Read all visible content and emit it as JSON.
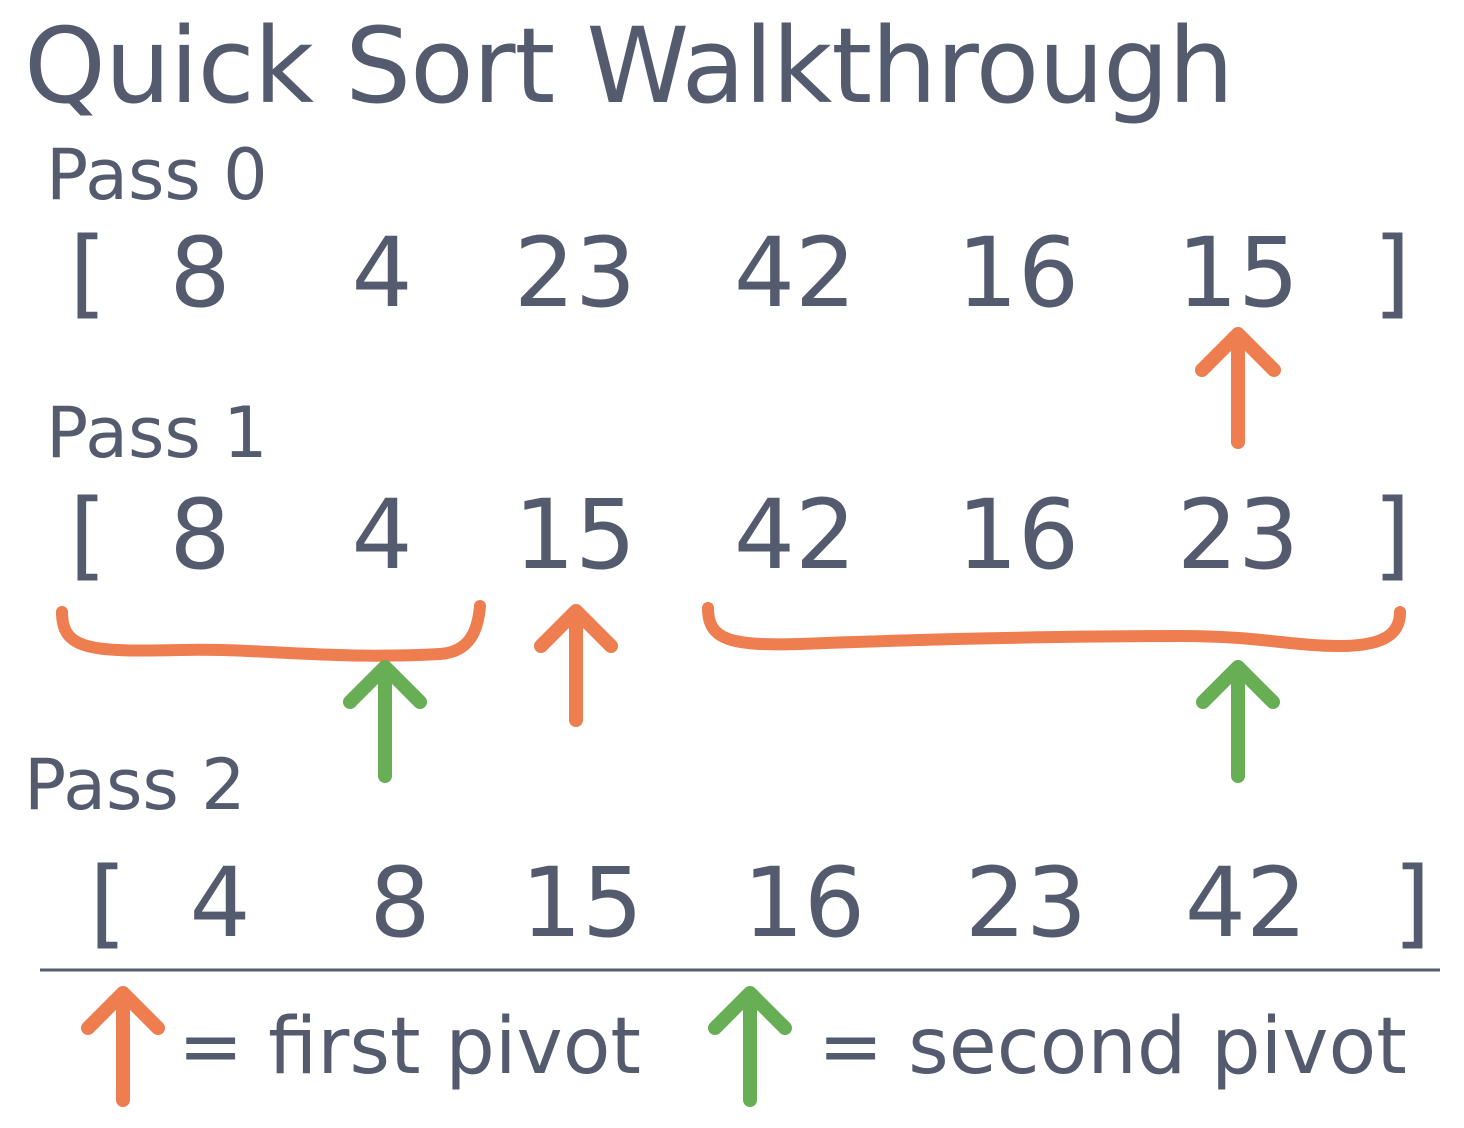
{
  "title": "Quick Sort Walkthrough",
  "passes": [
    {
      "label": "Pass 0",
      "values": [
        "8",
        "4",
        "23",
        "42",
        "16",
        "15"
      ]
    },
    {
      "label": "Pass 1",
      "values": [
        "8",
        "4",
        "15",
        "42",
        "16",
        "23"
      ]
    },
    {
      "label": "Pass 2",
      "values": [
        "4",
        "8",
        "15",
        "16",
        "23",
        "42"
      ]
    }
  ],
  "brackets": {
    "open": "[",
    "close": "]"
  },
  "legend": {
    "first_pivot": "= first pivot",
    "second_pivot": "= second pivot"
  },
  "colors": {
    "text": "#555b6e",
    "first_pivot": "#ee7d50",
    "second_pivot": "#67ae55",
    "divider": "#555b6e"
  },
  "icons": [
    "first-pivot-arrow-icon",
    "second-pivot-arrow-icon",
    "partition-brace-icon"
  ]
}
